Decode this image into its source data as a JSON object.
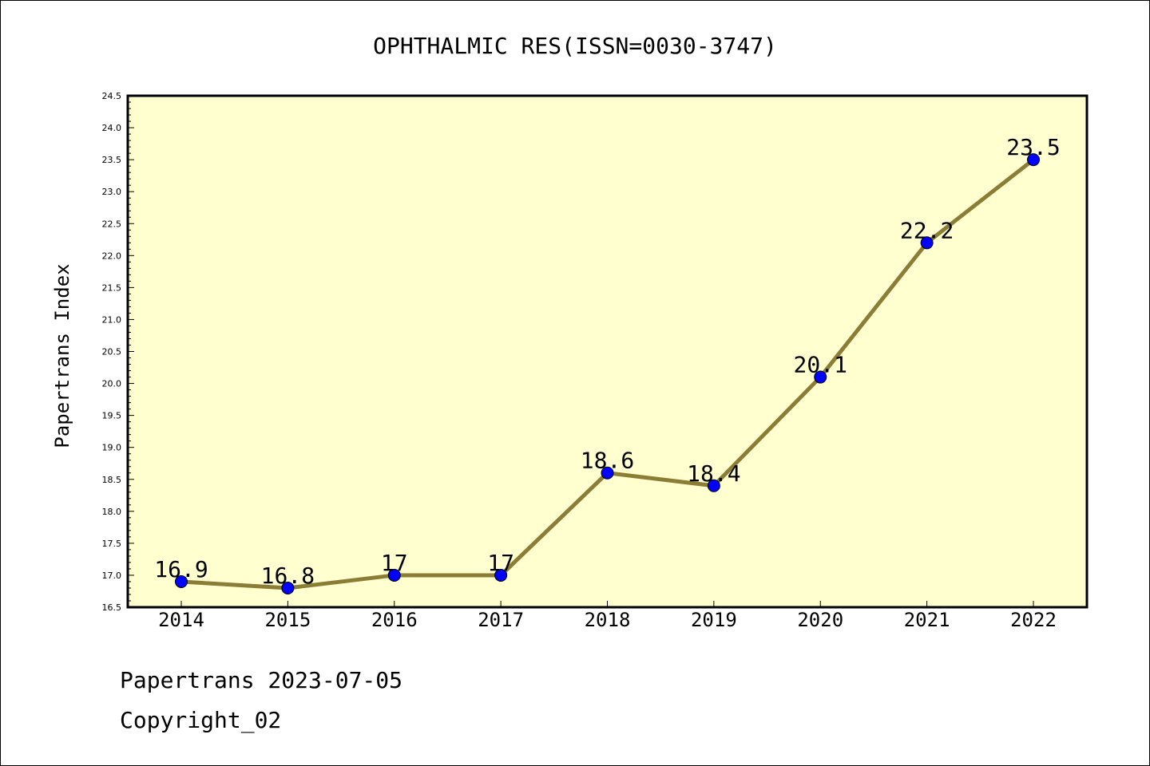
{
  "chart_data": {
    "type": "line",
    "title": "OPHTHALMIC RES(ISSN=0030-3747)",
    "ylabel": "Papertrans Index",
    "xlabel": "",
    "categories": [
      "2014",
      "2015",
      "2016",
      "2017",
      "2018",
      "2019",
      "2020",
      "2021",
      "2022"
    ],
    "values": [
      16.9,
      16.8,
      17,
      17,
      18.6,
      18.4,
      20.1,
      22.2,
      23.5
    ],
    "data_labels": [
      "16.9",
      "16.8",
      "17",
      "17",
      "18.6",
      "18.4",
      "20.1",
      "22.2",
      "23.5"
    ],
    "ylim": [
      16.5,
      24.5
    ],
    "yticks": [
      "16.5",
      "17.0",
      "17.5",
      "18.0",
      "18.5",
      "19.0",
      "19.5",
      "20.0",
      "20.5",
      "21.0",
      "21.5",
      "22.0",
      "22.5",
      "23.0",
      "23.5",
      "24.0",
      "24.5"
    ],
    "grid": false,
    "colors": {
      "plot_background": "#ffffd0",
      "line": "#8b7d35",
      "marker": "#0000ff"
    }
  },
  "footer": {
    "line1": "Papertrans 2023-07-05",
    "line2": "Copyright_02"
  }
}
